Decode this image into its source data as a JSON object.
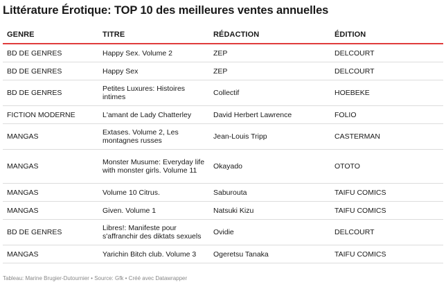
{
  "title": "Littérature Érotique: TOP 10 des meilleures ventes annuelles",
  "table": {
    "headers": {
      "genre": "GENRE",
      "titre": "TITRE",
      "redaction": "RÉDACTION",
      "edition": "ÉDITION"
    },
    "rows": [
      {
        "genre": "BD DE GENRES",
        "titre": "Happy Sex. Volume 2",
        "redaction": "ZEP",
        "edition": "DELCOURT"
      },
      {
        "genre": "BD DE GENRES",
        "titre": "Happy Sex",
        "redaction": "ZEP",
        "edition": "DELCOURT"
      },
      {
        "genre": "BD DE GENRES",
        "titre": "Petites Luxures: Histoires intimes",
        "redaction": "Collectif",
        "edition": "HOEBEKE"
      },
      {
        "genre": "FICTION MODERNE",
        "titre": "L'amant de Lady Chatterley",
        "redaction": "David Herbert Lawrence",
        "edition": "FOLIO"
      },
      {
        "genre": "MANGAS",
        "titre": "Extases. Volume 2, Les montagnes russes",
        "redaction": "Jean-Louis Tripp",
        "edition": "CASTERMAN"
      },
      {
        "genre": "MANGAS",
        "titre": "Monster Musume: Everyday life with monster girls. Volume 11",
        "redaction": "Okayado",
        "edition": "OTOTO"
      },
      {
        "genre": "MANGAS",
        "titre": "Volume 10 Citrus.",
        "redaction": "Saburouta",
        "edition": "TAIFU COMICS"
      },
      {
        "genre": "MANGAS",
        "titre": "Given. Volume 1",
        "redaction": "Natsuki Kizu",
        "edition": "TAIFU COMICS"
      },
      {
        "genre": "BD DE GENRES",
        "titre": "Libres!: Manifeste pour s'affranchir des diktats sexuels",
        "redaction": "Ovidie",
        "edition": "DELCOURT"
      },
      {
        "genre": "MANGAS",
        "titre": "Yarichin Bitch club. Volume 3",
        "redaction": "Ogeretsu Tanaka",
        "edition": "TAIFU COMICS"
      }
    ]
  },
  "footer": "Tableau: Marine Brugier-Dutournier • Source: Gfk • Créé avec Datawrapper"
}
